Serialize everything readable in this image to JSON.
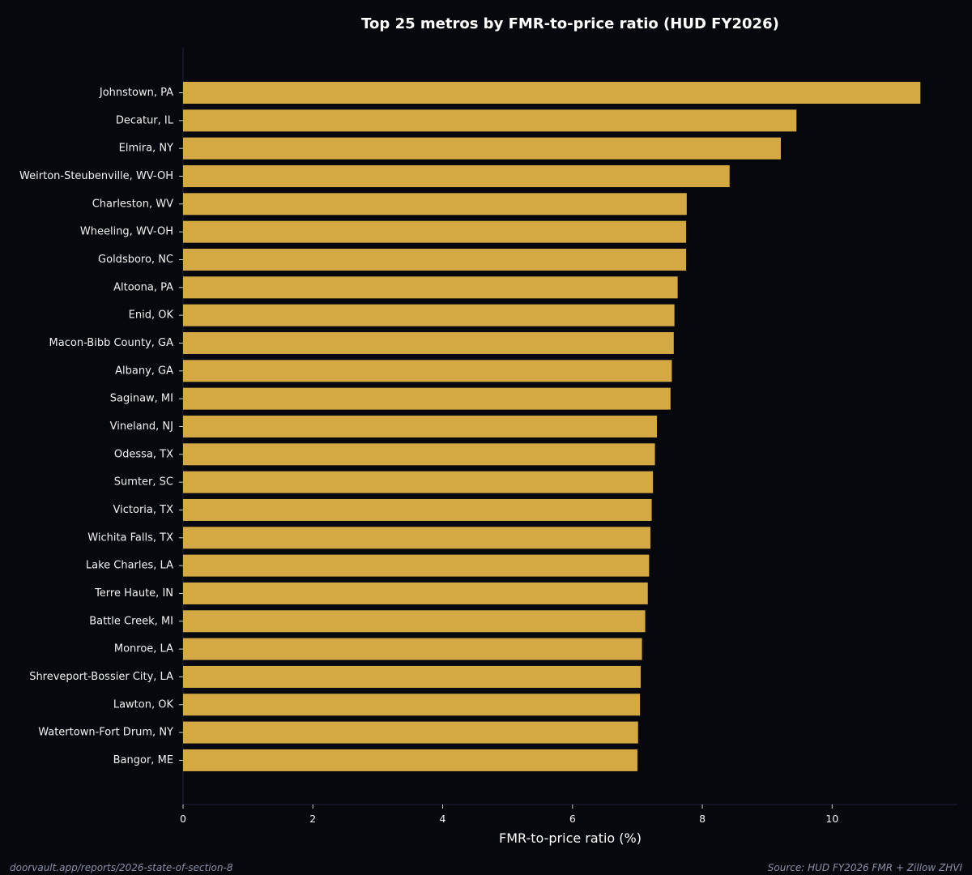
{
  "chart_data": {
    "type": "bar",
    "orientation": "horizontal",
    "title": "Top 25 metros by FMR-to-price ratio (HUD FY2026)",
    "xlabel": "FMR-to-price ratio (%)",
    "ylabel": "",
    "xlim": [
      0,
      11.93
    ],
    "xticks": [
      0,
      2,
      4,
      6,
      8,
      10
    ],
    "categories": [
      "Johnstown, PA",
      "Decatur, IL",
      "Elmira, NY",
      "Weirton-Steubenville, WV-OH",
      "Charleston, WV",
      "Wheeling, WV-OH",
      "Goldsboro, NC",
      "Altoona, PA",
      "Enid, OK",
      "Macon-Bibb County, GA",
      "Albany, GA",
      "Saginaw, MI",
      "Vineland, NJ",
      "Odessa, TX",
      "Sumter, SC",
      "Victoria, TX",
      "Wichita Falls, TX",
      "Lake Charles, LA",
      "Terre Haute, IN",
      "Battle Creek, MI",
      "Monroe, LA",
      "Shreveport-Bossier City, LA",
      "Lawton, OK",
      "Watertown-Fort Drum, NY",
      "Bangor, ME"
    ],
    "values": [
      11.36,
      9.45,
      9.21,
      8.42,
      7.76,
      7.75,
      7.75,
      7.62,
      7.57,
      7.56,
      7.53,
      7.51,
      7.3,
      7.27,
      7.24,
      7.22,
      7.2,
      7.18,
      7.16,
      7.12,
      7.07,
      7.05,
      7.04,
      7.01,
      7.0
    ],
    "bar_color": "#d4a843",
    "grid": false
  },
  "footer": {
    "left": "doorvault.app/reports/2026-state-of-section-8",
    "right": "Source: HUD FY2026 FMR + Zillow ZHVI"
  },
  "colors": {
    "background": "#07080d",
    "text": "#ffffff",
    "muted": "#8a8fa8",
    "axis": "#1e2140"
  }
}
